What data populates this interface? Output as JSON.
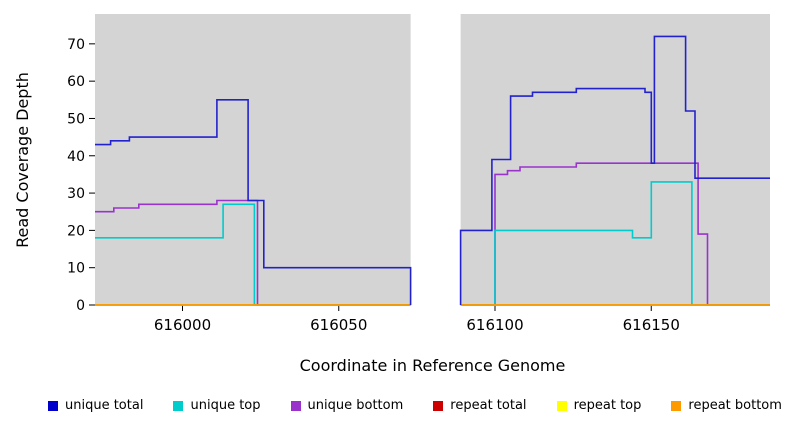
{
  "figure": {
    "xlabel": "Coordinate in Reference Genome",
    "ylabel": "Read Coverage Depth"
  },
  "chart_data": {
    "type": "line",
    "subtype": "step-coverage",
    "title": "",
    "xlabel": "Coordinate in Reference Genome",
    "ylabel": "Read Coverage Depth",
    "xlim": [
      615972,
      616188
    ],
    "ylim": [
      0,
      78
    ],
    "x_ticks": [
      616000,
      616050,
      616100,
      616150
    ],
    "y_ticks": [
      0,
      10,
      20,
      30,
      40,
      50,
      60,
      70
    ],
    "grid": false,
    "plot_bg": "#d4d4d4",
    "gap_region": {
      "x_start": 616073,
      "x_end": 616089,
      "color": "#ffffff"
    },
    "series": [
      {
        "name": "unique bottom",
        "color": "#9933cc",
        "points": [
          [
            615972,
            25
          ],
          [
            615978,
            26
          ],
          [
            615986,
            27
          ],
          [
            616011,
            28
          ],
          [
            616024,
            0
          ],
          [
            616073,
            0
          ],
          [
            null,
            null
          ],
          [
            616089,
            0
          ],
          [
            616100,
            35
          ],
          [
            616104,
            36
          ],
          [
            616108,
            37
          ],
          [
            616126,
            38
          ],
          [
            616165,
            19
          ],
          [
            616168,
            0
          ],
          [
            616188,
            0
          ]
        ]
      },
      {
        "name": "unique top",
        "color": "#00cccc",
        "points": [
          [
            615972,
            18
          ],
          [
            616013,
            27
          ],
          [
            616023,
            0
          ],
          [
            616073,
            0
          ],
          [
            null,
            null
          ],
          [
            616089,
            0
          ],
          [
            616100,
            20
          ],
          [
            616144,
            18
          ],
          [
            616150,
            33
          ],
          [
            616163,
            0
          ],
          [
            616188,
            0
          ]
        ]
      },
      {
        "name": "repeat total",
        "color": "#cc0000",
        "points": [
          [
            615972,
            0
          ],
          [
            616073,
            0
          ],
          [
            null,
            null
          ],
          [
            616089,
            0
          ],
          [
            616188,
            0
          ]
        ]
      },
      {
        "name": "repeat top",
        "color": "#f0f000",
        "points": [
          [
            615972,
            0
          ],
          [
            616073,
            0
          ],
          [
            null,
            null
          ],
          [
            616089,
            0
          ],
          [
            616188,
            0
          ]
        ]
      },
      {
        "name": "repeat bottom",
        "color": "#ff9900",
        "points": [
          [
            615972,
            0
          ],
          [
            616073,
            0
          ],
          [
            null,
            null
          ],
          [
            616089,
            0
          ],
          [
            616188,
            0
          ]
        ]
      },
      {
        "name": "unique total",
        "color": "#2222cc",
        "points": [
          [
            615972,
            43
          ],
          [
            615977,
            44
          ],
          [
            615983,
            45
          ],
          [
            616011,
            55
          ],
          [
            616021,
            28
          ],
          [
            616026,
            10
          ],
          [
            616073,
            0
          ],
          [
            null,
            null
          ],
          [
            616089,
            0
          ],
          [
            616089,
            20
          ],
          [
            616099,
            39
          ],
          [
            616105,
            56
          ],
          [
            616112,
            57
          ],
          [
            616126,
            58
          ],
          [
            616148,
            57
          ],
          [
            616150,
            38
          ],
          [
            616151,
            72
          ],
          [
            616161,
            52
          ],
          [
            616164,
            34
          ],
          [
            616188,
            34
          ]
        ]
      }
    ],
    "legend": [
      {
        "label": "unique total",
        "color": "#0000cc"
      },
      {
        "label": "unique top",
        "color": "#00cccc"
      },
      {
        "label": "unique bottom",
        "color": "#9933cc"
      },
      {
        "label": "repeat total",
        "color": "#cc0000"
      },
      {
        "label": "repeat top",
        "color": "#ffff00"
      },
      {
        "label": "repeat bottom",
        "color": "#ff9900"
      }
    ],
    "legend_position": "bottom"
  }
}
